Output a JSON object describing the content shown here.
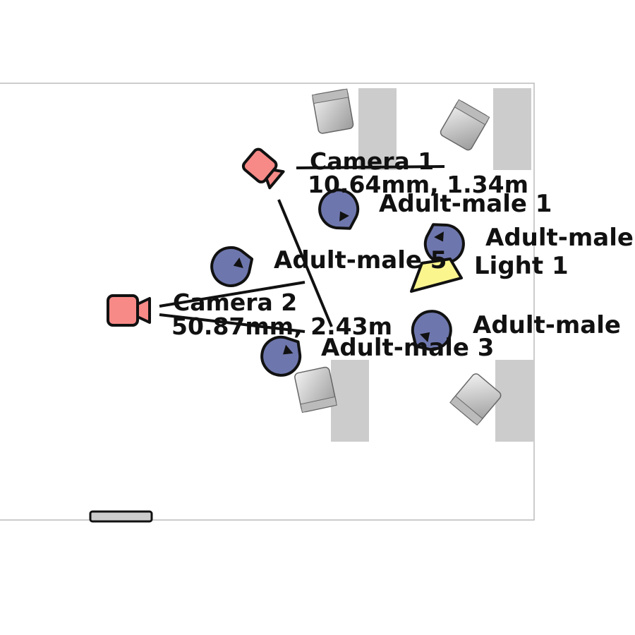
{
  "scene": {
    "cameras": [
      {
        "id": "camera-1",
        "name": "Camera 1",
        "specs": "10.64mm, 1.34m"
      },
      {
        "id": "camera-2",
        "name": "Camera 2",
        "specs": "50.87mm, 2.43m"
      }
    ],
    "people": [
      {
        "id": "adult-male-1",
        "name": "Adult-male 1"
      },
      {
        "id": "adult-male-2",
        "name": "Adult-male"
      },
      {
        "id": "adult-male-3",
        "name": "Adult-male 3"
      },
      {
        "id": "adult-male-5",
        "name": "Adult-male 5"
      },
      {
        "id": "adult-male-6",
        "name": "Adult-male"
      },
      {
        "id": "adult-male-4",
        "name": "Adult-male"
      }
    ],
    "lights": [
      {
        "id": "light-1",
        "name": "Light 1"
      }
    ],
    "colors": {
      "camera": "#f78a87",
      "person": "#6e77ad",
      "light": "#fbf58e",
      "outline": "#111111",
      "table": "#cccccc",
      "chair": "#d9d9d9",
      "room_border": "#bbbbbb"
    }
  }
}
